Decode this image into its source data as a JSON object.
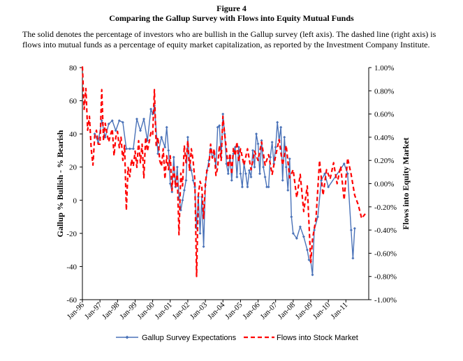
{
  "figure": {
    "number": "Figure 4",
    "title": "Comparing the Gallup Survey with Flows into Equity Mutual Funds",
    "caption": "The solid denotes the percentage of investors who are bullish in the Gallup survey (left axis). The dashed line (right axis)  is flows into mutual funds as a percentage of equity market capitalization, as reported by the Investment Company Institute."
  },
  "chart_data": {
    "type": "line",
    "ylabel": "Gallup % Bullish - % Bearish",
    "y2label": "Flows into Equity Market",
    "xlim": [
      1996.0,
      2012.3
    ],
    "ylim": [
      -60,
      80
    ],
    "y2lim": [
      -0.01,
      0.01
    ],
    "x_ticks": [
      {
        "value": 1996.0,
        "label": "Jan-96"
      },
      {
        "value": 1997.0,
        "label": "Jan-97"
      },
      {
        "value": 1998.0,
        "label": "Jan-98"
      },
      {
        "value": 1999.0,
        "label": "Jan-99"
      },
      {
        "value": 2000.0,
        "label": "Jan-00"
      },
      {
        "value": 2001.0,
        "label": "Jan-01"
      },
      {
        "value": 2002.0,
        "label": "Jan-02"
      },
      {
        "value": 2003.0,
        "label": "Jan-03"
      },
      {
        "value": 2004.0,
        "label": "Jan-04"
      },
      {
        "value": 2005.0,
        "label": "Jan-05"
      },
      {
        "value": 2006.0,
        "label": "Jan-06"
      },
      {
        "value": 2007.0,
        "label": "Jan-07"
      },
      {
        "value": 2008.0,
        "label": "Jan-08"
      },
      {
        "value": 2009.0,
        "label": "Jan-09"
      },
      {
        "value": 2010.0,
        "label": "Jan-10"
      },
      {
        "value": 2011.0,
        "label": "Jan-11"
      }
    ],
    "y_ticks": [
      {
        "value": -60,
        "label": "-60"
      },
      {
        "value": -40,
        "label": "-40"
      },
      {
        "value": -20,
        "label": "-20"
      },
      {
        "value": 0,
        "label": "0"
      },
      {
        "value": 20,
        "label": "20"
      },
      {
        "value": 40,
        "label": "40"
      },
      {
        "value": 60,
        "label": "60"
      },
      {
        "value": 80,
        "label": "80"
      }
    ],
    "y2_ticks": [
      {
        "value": -0.01,
        "label": "-1.00%"
      },
      {
        "value": -0.008,
        "label": "-0.80%"
      },
      {
        "value": -0.006,
        "label": "-0.60%"
      },
      {
        "value": -0.004,
        "label": "-0.40%"
      },
      {
        "value": -0.002,
        "label": "-0.20%"
      },
      {
        "value": 0.0,
        "label": "0.00%"
      },
      {
        "value": 0.002,
        "label": "0.20%"
      },
      {
        "value": 0.004,
        "label": "0.40%"
      },
      {
        "value": 0.006,
        "label": "0.60%"
      },
      {
        "value": 0.008,
        "label": "0.80%"
      },
      {
        "value": 0.01,
        "label": "1.00%"
      }
    ],
    "grid": false,
    "legend": "bottom",
    "series": [
      {
        "name": "Gallup Survey Expectations",
        "axis": "left",
        "style": "solid",
        "color": "#4a72b8",
        "marker": "diamond",
        "x": [
          1996.7,
          1996.9,
          1997.1,
          1997.3,
          1997.5,
          1997.7,
          1997.9,
          1998.1,
          1998.3,
          1998.5,
          1998.7,
          1998.9,
          1999.1,
          1999.3,
          1999.5,
          1999.7,
          1999.9,
          2000.0,
          2000.1,
          2000.3,
          2000.5,
          2000.7,
          2000.8,
          2000.9,
          2001.0,
          2001.1,
          2001.2,
          2001.3,
          2001.4,
          2001.5,
          2001.6,
          2001.7,
          2001.8,
          2001.9,
          2002.0,
          2002.1,
          2002.2,
          2002.3,
          2002.4,
          2002.5,
          2002.6,
          2002.7,
          2002.8,
          2002.9,
          2003.0,
          2003.1,
          2003.2,
          2003.3,
          2003.4,
          2003.5,
          2003.6,
          2003.7,
          2003.8,
          2003.9,
          2004.0,
          2004.1,
          2004.2,
          2004.3,
          2004.4,
          2004.5,
          2004.6,
          2004.7,
          2004.8,
          2004.9,
          2005.0,
          2005.1,
          2005.2,
          2005.3,
          2005.4,
          2005.5,
          2005.6,
          2005.7,
          2005.8,
          2005.9,
          2006.0,
          2006.1,
          2006.2,
          2006.3,
          2006.4,
          2006.5,
          2006.6,
          2006.7,
          2006.8,
          2006.9,
          2007.0,
          2007.1,
          2007.2,
          2007.3,
          2007.4,
          2007.5,
          2007.6,
          2007.7,
          2007.8,
          2007.9,
          2008.0,
          2008.2,
          2008.4,
          2008.6,
          2008.8,
          2008.9,
          2009.0,
          2009.1,
          2009.2,
          2009.4,
          2009.6,
          2009.8,
          2010.0,
          2010.9,
          2011.1,
          2011.3,
          2011.4,
          2011.5
        ],
        "values": [
          40,
          35,
          48,
          38,
          46,
          48,
          42,
          48,
          47,
          31,
          31,
          31,
          49,
          42,
          49,
          36,
          55,
          52,
          57,
          28,
          38,
          32,
          44,
          30,
          10,
          5,
          26,
          8,
          20,
          2,
          -6,
          0,
          6,
          12,
          38,
          24,
          18,
          12,
          8,
          -17,
          2,
          -20,
          2,
          -28,
          9,
          18,
          24,
          31,
          26,
          28,
          20,
          44,
          45,
          26,
          52,
          40,
          22,
          16,
          27,
          12,
          28,
          32,
          14,
          32,
          16,
          8,
          22,
          16,
          8,
          18,
          14,
          30,
          20,
          40,
          34,
          16,
          36,
          20,
          14,
          8,
          8,
          26,
          35,
          22,
          32,
          47,
          36,
          44,
          12,
          38,
          20,
          6,
          25,
          -10,
          -20,
          -23,
          -16,
          -22,
          -30,
          -36,
          -37,
          -45,
          -18,
          -10,
          12,
          16,
          8,
          22,
          16,
          -18,
          -35,
          -17
        ]
      },
      {
        "name": "Flows into Stock Market",
        "axis": "right",
        "style": "dashed",
        "color": "#ff0000",
        "x": [
          1996.0,
          1996.1,
          1996.2,
          1996.3,
          1996.4,
          1996.5,
          1996.6,
          1996.7,
          1996.8,
          1996.9,
          1997.0,
          1997.1,
          1997.2,
          1997.3,
          1997.4,
          1997.5,
          1997.6,
          1997.7,
          1997.8,
          1997.9,
          1998.0,
          1998.1,
          1998.2,
          1998.3,
          1998.4,
          1998.5,
          1998.6,
          1998.7,
          1998.8,
          1998.9,
          1999.0,
          1999.1,
          1999.2,
          1999.3,
          1999.4,
          1999.5,
          1999.6,
          1999.7,
          1999.8,
          1999.9,
          2000.0,
          2000.1,
          2000.2,
          2000.3,
          2000.4,
          2000.5,
          2000.6,
          2000.7,
          2000.8,
          2000.9,
          2001.0,
          2001.1,
          2001.2,
          2001.3,
          2001.4,
          2001.5,
          2001.6,
          2001.7,
          2001.8,
          2001.9,
          2002.0,
          2002.1,
          2002.2,
          2002.3,
          2002.4,
          2002.5,
          2002.6,
          2002.7,
          2002.8,
          2002.9,
          2003.0,
          2003.1,
          2003.2,
          2003.3,
          2003.4,
          2003.5,
          2003.6,
          2003.7,
          2003.8,
          2003.9,
          2004.0,
          2004.1,
          2004.2,
          2004.3,
          2004.4,
          2004.5,
          2004.6,
          2004.7,
          2004.8,
          2004.9,
          2005.0,
          2005.2,
          2005.4,
          2005.6,
          2005.8,
          2006.0,
          2006.2,
          2006.4,
          2006.6,
          2006.8,
          2007.0,
          2007.2,
          2007.4,
          2007.6,
          2007.8,
          2008.0,
          2008.2,
          2008.4,
          2008.6,
          2008.8,
          2009.0,
          2009.1,
          2009.3,
          2009.5,
          2009.7,
          2009.9,
          2010.1,
          2010.3,
          2010.5,
          2010.7,
          2010.9,
          2011.1,
          2011.3,
          2011.5,
          2011.7,
          2011.9,
          2012.1
        ],
        "values": [
          0.0101,
          0.0064,
          0.0082,
          0.0046,
          0.0058,
          0.003,
          0.0016,
          0.0041,
          0.0046,
          0.0034,
          0.0034,
          0.0081,
          0.0037,
          0.0052,
          0.0043,
          0.0036,
          0.0042,
          0.0047,
          0.0024,
          0.004,
          0.0045,
          0.0031,
          0.004,
          0.002,
          0.0033,
          -0.0023,
          0.0014,
          0.0006,
          0.0021,
          0.0015,
          0.0028,
          0.0014,
          0.0037,
          0.0018,
          0.0034,
          0.0005,
          0.004,
          0.0028,
          0.0036,
          0.0044,
          0.0042,
          0.0081,
          0.0033,
          0.004,
          0.002,
          0.0015,
          0.003,
          0.0004,
          0.0024,
          0.0012,
          0.0024,
          -0.0006,
          0.0016,
          -0.0003,
          0.0008,
          -0.0044,
          0.0009,
          -0.0002,
          0.0033,
          0.0018,
          0.0037,
          0.0011,
          0.003,
          0.002,
          0.0003,
          -0.008,
          -0.001,
          0.0002,
          -0.0003,
          -0.003,
          0.0,
          0.0013,
          0.0015,
          0.0034,
          0.0022,
          0.003,
          0.0007,
          0.0014,
          0.0033,
          0.002,
          0.0058,
          0.0043,
          0.0029,
          0.0014,
          0.0026,
          0.0008,
          0.0031,
          0.0024,
          0.0036,
          0.0019,
          0.003,
          0.0016,
          0.003,
          0.0012,
          0.0028,
          0.002,
          0.0036,
          0.0016,
          0.0025,
          0.0008,
          0.0024,
          0.0038,
          0.0016,
          0.0033,
          0.0005,
          0.0012,
          -0.0012,
          0.0008,
          -0.0024,
          -0.0002,
          -0.0068,
          -0.0048,
          -0.003,
          0.002,
          -0.001,
          0.0012,
          0.0004,
          0.0018,
          0.0,
          0.0015,
          -0.0014,
          0.0022,
          0.0008,
          -0.001,
          -0.0018,
          -0.003,
          -0.0026
        ]
      }
    ]
  }
}
